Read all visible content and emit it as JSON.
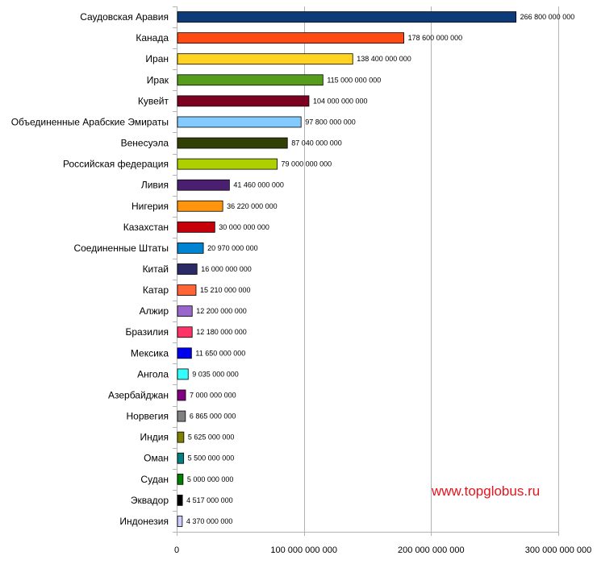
{
  "chart_data": {
    "type": "bar",
    "orientation": "horizontal",
    "categories": [
      "Саудовская Аравия",
      "Канада",
      "Иран",
      "Ирак",
      "Кувейт",
      "Объединенные Арабские Эмираты",
      "Венесуэла",
      "Российская федерация",
      "Ливия",
      "Нигерия",
      "Казахстан",
      "Соединенные Штаты",
      "Китай",
      "Катар",
      "Алжир",
      "Бразилия",
      "Мексика",
      "Ангола",
      "Азербайджан",
      "Норвегия",
      "Индия",
      "Оман",
      "Судан",
      "Эквадор",
      "Индонезия"
    ],
    "values": [
      266800000000,
      178600000000,
      138400000000,
      115000000000,
      104000000000,
      97800000000,
      87040000000,
      79000000000,
      41460000000,
      36220000000,
      30000000000,
      20970000000,
      16000000000,
      15210000000,
      12200000000,
      12180000000,
      11650000000,
      9035000000,
      7000000000,
      6865000000,
      5625000000,
      5500000000,
      5000000000,
      4517000000,
      4370000000
    ],
    "value_labels": [
      "266 800 000 000",
      "178 600 000 000",
      "138 400 000 000",
      "115 000 000 000",
      "104 000 000 000",
      "97 800 000 000",
      "87 040 000 000",
      "79 000 000 000",
      "41 460 000 000",
      "36 220 000 000",
      "30 000 000 000",
      "20 970 000 000",
      "16 000 000 000",
      "15 210 000 000",
      "12 200 000 000",
      "12 180 000 000",
      "11 650 000 000",
      "9 035 000 000",
      "7 000 000 000",
      "6 865 000 000",
      "5 625 000 000",
      "5 500 000 000",
      "5 000 000 000",
      "4 517 000 000",
      "4 370 000 000"
    ],
    "colors": [
      "#0d3a78",
      "#ff4a14",
      "#ffd320",
      "#579d1c",
      "#7e0021",
      "#83caff",
      "#314004",
      "#aecf00",
      "#4b1f6f",
      "#ff950e",
      "#c5000b",
      "#0084d1",
      "#2a2a64",
      "#ff6437",
      "#9966cc",
      "#ff3366",
      "#0000ee",
      "#33ffff",
      "#800080",
      "#808080",
      "#808000",
      "#008080",
      "#008000",
      "#000000",
      "#ccccff"
    ],
    "xlim": [
      0,
      300000000000
    ],
    "xticks": [
      0,
      100000000000,
      200000000000,
      300000000000
    ],
    "xtick_labels": [
      "0",
      "100 000 000 000",
      "200 000 000 000",
      "300 000 000 000"
    ],
    "grid": true,
    "title": "",
    "xlabel": "",
    "ylabel": ""
  },
  "watermark": "www.topglobus.ru"
}
